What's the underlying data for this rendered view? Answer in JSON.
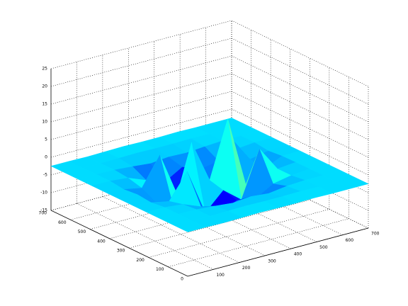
{
  "chart_data": {
    "type": "surface",
    "colormap": "jet",
    "x": [
      0,
      70,
      140,
      210,
      280,
      350,
      420,
      490,
      560,
      630,
      700
    ],
    "y": [
      0,
      70,
      140,
      210,
      280,
      350,
      420,
      490,
      560,
      630,
      700
    ],
    "z": [
      [
        -2.5,
        -2.5,
        -2.6,
        -2.5,
        -2.4,
        -2.5,
        -2.5,
        -2.4,
        -2.5,
        -2.5,
        -2.5
      ],
      [
        -2.5,
        -2.5,
        -2.6,
        -2.5,
        -2.4,
        -2.5,
        -2.5,
        -2.4,
        -2.5,
        -2.5,
        -2.5
      ],
      [
        -2.5,
        -2.5,
        -2.6,
        -3,
        -3.5,
        -3,
        -3.5,
        -2.8,
        -2.5,
        -2.5,
        -2.5
      ],
      [
        -2.5,
        -2.5,
        -3,
        -5,
        -8,
        -6,
        -7,
        -4,
        -3,
        -2.5,
        -2.5
      ],
      [
        -2.5,
        -3,
        -4,
        3,
        -10,
        -5,
        -9,
        4,
        -3,
        -2.5,
        -2.5
      ],
      [
        -2.5,
        -2.6,
        -6,
        -9,
        8,
        -4,
        12,
        -8,
        -5,
        -2.6,
        -2.5
      ],
      [
        -2.5,
        -3,
        -4,
        4,
        -9,
        -6,
        -10,
        3,
        -4,
        -3,
        -2.5
      ],
      [
        -2.5,
        -2.5,
        -3,
        -5,
        -7,
        -4,
        -6,
        -5,
        -3,
        -2.5,
        -2.5
      ],
      [
        -2.5,
        -2.5,
        -2.6,
        -3,
        -3.5,
        -3,
        -3.2,
        -2.8,
        -2.5,
        -2.5,
        -2.5
      ],
      [
        -2.5,
        -2.5,
        -2.6,
        -2.5,
        -2.4,
        -2.5,
        -2.5,
        -2.4,
        -2.5,
        -2.5,
        -2.5
      ],
      [
        -2.5,
        -2.5,
        -2.6,
        -2.5,
        -2.4,
        -2.5,
        -2.5,
        -2.4,
        -2.5,
        -2.5,
        -2.5
      ]
    ],
    "xlim": [
      0,
      700
    ],
    "ylim": [
      0,
      700
    ],
    "zlim": [
      -15,
      25
    ],
    "xticks": [
      100,
      200,
      300,
      400,
      500,
      600,
      700
    ],
    "yticks": [
      0,
      100,
      200,
      300,
      400,
      500,
      600,
      700
    ],
    "zticks": [
      -15,
      -10,
      -5,
      0,
      5,
      10,
      15,
      20,
      25
    ],
    "grid": true
  }
}
